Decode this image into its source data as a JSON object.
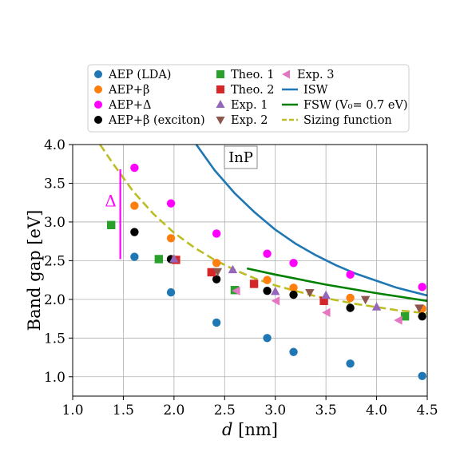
{
  "chart_data": {
    "type": "scatter",
    "xlabel_math": "d",
    "xlabel_unit": " [nm]",
    "ylabel": "Band gap [eV]",
    "xlim": [
      1.0,
      4.5
    ],
    "ylim": [
      0.75,
      4.0
    ],
    "xticks": [
      "1.0",
      "1.5",
      "2.0",
      "2.5",
      "3.0",
      "3.5",
      "4.0",
      "4.5"
    ],
    "xtick_values": [
      1.0,
      1.5,
      2.0,
      2.5,
      3.0,
      3.5,
      4.0,
      4.5
    ],
    "yticks": [
      "1.0",
      "1.5",
      "2.0",
      "2.5",
      "3.0",
      "3.5",
      "4.0"
    ],
    "ytick_values": [
      1.0,
      1.5,
      2.0,
      2.5,
      3.0,
      3.5,
      4.0
    ],
    "grid": true,
    "legend_placement": "above plot",
    "annotation_label": "InP",
    "delta": {
      "label": "Δ",
      "x": 1.47,
      "y_from": 2.52,
      "y_to": 3.68,
      "color": "#ff00ff"
    },
    "series": [
      {
        "name": "AEP (LDA)",
        "marker": "circle",
        "color": "#1f77b4",
        "points": [
          [
            1.61,
            2.55
          ],
          [
            1.97,
            2.09
          ],
          [
            2.42,
            1.7
          ],
          [
            2.92,
            1.5
          ],
          [
            3.18,
            1.32
          ],
          [
            3.74,
            1.17
          ],
          [
            4.45,
            1.01
          ]
        ]
      },
      {
        "name": "AEP+β",
        "marker": "circle",
        "color": "#ff7f0e",
        "points": [
          [
            1.61,
            3.21
          ],
          [
            1.97,
            2.79
          ],
          [
            2.42,
            2.47
          ],
          [
            2.92,
            2.25
          ],
          [
            3.18,
            2.15
          ],
          [
            3.74,
            2.02
          ],
          [
            4.45,
            1.88
          ]
        ]
      },
      {
        "name": "AEP+Δ",
        "marker": "circle",
        "color": "#ff00ff",
        "points": [
          [
            1.61,
            3.7
          ],
          [
            1.97,
            3.24
          ],
          [
            2.42,
            2.85
          ],
          [
            2.92,
            2.59
          ],
          [
            3.18,
            2.47
          ],
          [
            3.74,
            2.32
          ],
          [
            4.45,
            2.16
          ]
        ]
      },
      {
        "name": "AEP+β (exciton)",
        "marker": "circle",
        "color": "#000000",
        "points": [
          [
            1.61,
            2.87
          ],
          [
            1.97,
            2.52
          ],
          [
            2.42,
            2.26
          ],
          [
            2.92,
            2.11
          ],
          [
            3.18,
            2.06
          ],
          [
            3.74,
            1.89
          ],
          [
            4.45,
            1.78
          ]
        ]
      },
      {
        "name": "Theo. 1",
        "marker": "square",
        "color": "#2ca02c",
        "points": [
          [
            1.38,
            2.96
          ],
          [
            1.85,
            2.52
          ],
          [
            2.6,
            2.12
          ],
          [
            4.28,
            1.78
          ]
        ]
      },
      {
        "name": "Theo. 2",
        "marker": "square",
        "color": "#d62728",
        "points": [
          [
            2.02,
            2.51
          ],
          [
            2.37,
            2.35
          ],
          [
            2.79,
            2.2
          ],
          [
            3.48,
            1.98
          ]
        ]
      },
      {
        "name": "Exp. 1",
        "marker": "triangle-up",
        "color": "#9467bd",
        "points": [
          [
            2.0,
            2.52
          ],
          [
            2.58,
            2.38
          ],
          [
            3.0,
            2.1
          ],
          [
            3.5,
            2.05
          ],
          [
            4.0,
            1.9
          ]
        ]
      },
      {
        "name": "Exp. 2",
        "marker": "triangle-down",
        "color": "#8c564b",
        "points": [
          [
            2.43,
            2.36
          ],
          [
            3.34,
            2.09
          ],
          [
            3.89,
            2.0
          ],
          [
            4.42,
            1.89
          ]
        ]
      },
      {
        "name": "Exp. 3",
        "marker": "triangle-left",
        "color": "#e377c2",
        "points": [
          [
            2.62,
            2.11
          ],
          [
            3.01,
            1.98
          ],
          [
            3.51,
            1.83
          ],
          [
            4.22,
            1.73
          ]
        ]
      }
    ],
    "lines": [
      {
        "name": "ISW",
        "color": "#1f77b4",
        "style": "solid",
        "points": [
          [
            2.22,
            4.0
          ],
          [
            2.4,
            3.67
          ],
          [
            2.6,
            3.37
          ],
          [
            2.8,
            3.12
          ],
          [
            3.0,
            2.9
          ],
          [
            3.2,
            2.72
          ],
          [
            3.4,
            2.57
          ],
          [
            3.6,
            2.44
          ],
          [
            3.8,
            2.33
          ],
          [
            4.0,
            2.24
          ],
          [
            4.2,
            2.15
          ],
          [
            4.5,
            2.05
          ]
        ]
      },
      {
        "name": "FSW (V₀= 0.7 eV)",
        "color": "#008000",
        "style": "solid",
        "points": [
          [
            2.72,
            2.4
          ],
          [
            3.0,
            2.32
          ],
          [
            3.5,
            2.19
          ],
          [
            4.0,
            2.08
          ],
          [
            4.5,
            1.98
          ]
        ]
      },
      {
        "name": "Sizing function",
        "color": "#bcbd22",
        "style": "dashed",
        "points": [
          [
            1.27,
            4.0
          ],
          [
            1.4,
            3.75
          ],
          [
            1.6,
            3.39
          ],
          [
            1.8,
            3.1
          ],
          [
            2.0,
            2.86
          ],
          [
            2.2,
            2.67
          ],
          [
            2.4,
            2.51
          ],
          [
            2.6,
            2.38
          ],
          [
            2.8,
            2.27
          ],
          [
            3.0,
            2.18
          ],
          [
            3.2,
            2.11
          ],
          [
            3.4,
            2.04
          ],
          [
            3.6,
            1.99
          ],
          [
            3.8,
            1.94
          ],
          [
            4.0,
            1.9
          ],
          [
            4.2,
            1.86
          ],
          [
            4.5,
            1.82
          ]
        ]
      }
    ],
    "legend": [
      {
        "label": "AEP (LDA)",
        "kind": "circle",
        "color": "#1f77b4"
      },
      {
        "label": "AEP+β",
        "kind": "circle",
        "color": "#ff7f0e"
      },
      {
        "label": "AEP+Δ",
        "kind": "circle",
        "color": "#ff00ff"
      },
      {
        "label": "AEP+β (exciton)",
        "kind": "circle",
        "color": "#000000"
      },
      {
        "label": "Theo. 1",
        "kind": "square",
        "color": "#2ca02c"
      },
      {
        "label": "Theo. 2",
        "kind": "square",
        "color": "#d62728"
      },
      {
        "label": "Exp. 1",
        "kind": "triangle-up",
        "color": "#9467bd"
      },
      {
        "label": "Exp. 2",
        "kind": "triangle-down",
        "color": "#8c564b"
      },
      {
        "label": "Exp. 3",
        "kind": "triangle-left",
        "color": "#e377c2"
      },
      {
        "label": "ISW",
        "kind": "line",
        "color": "#1f77b4"
      },
      {
        "label": "FSW (V₀= 0.7 eV)",
        "kind": "line",
        "color": "#008000"
      },
      {
        "label": "Sizing function",
        "kind": "dashed",
        "color": "#bcbd22"
      }
    ]
  }
}
